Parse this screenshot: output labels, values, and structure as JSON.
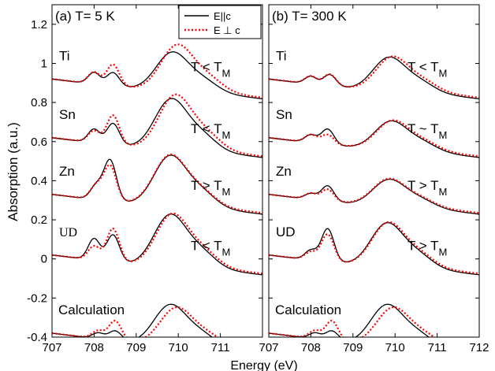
{
  "chart_data": {
    "type": "line",
    "ylabel": "Absorption (a.u.)",
    "xlabel": "Energy (eV)",
    "ylim": [
      -0.4,
      1.3
    ],
    "legend": {
      "position": "top-right of left panel",
      "entries": [
        {
          "label": "E||c",
          "style": "solid",
          "color": "#000000"
        },
        {
          "label": "E ⊥ c",
          "style": "dotted",
          "color": "#ff0000"
        }
      ]
    },
    "panels": [
      {
        "title": "(a) T= 5 K",
        "xlim": [
          707,
          712
        ],
        "xticks": [
          "707",
          "708",
          "709",
          "710",
          "711"
        ],
        "yticks": [
          "-0.4",
          "-0.2",
          "0",
          "0.2",
          "0.4",
          "0.6",
          "0.8",
          "1",
          "1.2"
        ],
        "spectra": [
          {
            "label": "Ti",
            "annotation": "T < T",
            "sub": "M",
            "offset": 0.92,
            "mainA": 0.22,
            "mainE": 709.85,
            "preA": 0.06,
            "preE": 708.0,
            "pre2A": 0.07,
            "pre2E": 708.45,
            "perpMainA": 0.26,
            "perpShift": 0.12,
            "perpPreA": 0.06,
            "perpPre2A": 0.11
          },
          {
            "label": "Sn",
            "annotation": "T < T",
            "sub": "M",
            "offset": 0.62,
            "mainA": 0.29,
            "mainE": 709.82,
            "preA": 0.07,
            "preE": 708.0,
            "pre2A": 0.11,
            "pre2E": 708.45,
            "perpMainA": 0.31,
            "perpShift": 0.1,
            "perpPreA": 0.06,
            "perpPre2A": 0.15
          },
          {
            "label": "Zn",
            "annotation": "T > T",
            "sub": "M",
            "offset": 0.33,
            "mainA": 0.29,
            "mainE": 709.8,
            "preA": 0.07,
            "preE": 708.05,
            "pre2A": 0.21,
            "pre2E": 708.38,
            "perpMainA": 0.29,
            "perpShift": 0.0,
            "perpPreA": 0.07,
            "perpPre2A": 0.18
          },
          {
            "label": "UD",
            "annotation": "T < T",
            "sub": "M",
            "offset": 0.02,
            "mainA": 0.3,
            "mainE": 709.8,
            "preA": 0.11,
            "preE": 708.0,
            "pre2A": 0.14,
            "pre2E": 708.45,
            "perpMainA": 0.3,
            "perpShift": 0.05,
            "perpPreA": 0.07,
            "perpPre2A": 0.17
          },
          {
            "label": "Calculation",
            "annotation": "",
            "sub": "",
            "offset": -0.38,
            "mainA": 0.23,
            "mainE": 709.8,
            "preA": 0.03,
            "preE": 708.1,
            "pre2A": 0.05,
            "pre2E": 708.5,
            "perpMainA": 0.21,
            "perpShift": 0.15,
            "perpPreA": 0.04,
            "perpPre2A": 0.1
          }
        ]
      },
      {
        "title": "(b) T= 300 K",
        "xlim": [
          707,
          712
        ],
        "xticks": [
          "707",
          "708",
          "709",
          "710",
          "711",
          "712"
        ],
        "yticks": [],
        "spectra": [
          {
            "label": "Ti",
            "annotation": "T < T",
            "sub": "M",
            "offset": 0.92,
            "mainA": 0.19,
            "mainE": 709.85,
            "preA": 0.04,
            "preE": 708.0,
            "pre2A": 0.06,
            "pre2E": 708.45,
            "perpMainA": 0.19,
            "perpShift": 0.08,
            "perpPreA": 0.04,
            "perpPre2A": 0.06
          },
          {
            "label": "Sn",
            "annotation": "T ~ T",
            "sub": "M",
            "offset": 0.62,
            "mainA": 0.16,
            "mainE": 709.9,
            "preA": 0.04,
            "preE": 708.0,
            "pre2A": 0.08,
            "pre2E": 708.4,
            "perpMainA": 0.16,
            "perpShift": 0.04,
            "perpPreA": 0.04,
            "perpPre2A": 0.05
          },
          {
            "label": "Zn",
            "annotation": "T > T",
            "sub": "M",
            "offset": 0.33,
            "mainA": 0.15,
            "mainE": 709.85,
            "preA": 0.03,
            "preE": 708.0,
            "pre2A": 0.08,
            "pre2E": 708.4,
            "perpMainA": 0.15,
            "perpShift": 0.0,
            "perpPreA": 0.03,
            "perpPre2A": 0.06
          },
          {
            "label": "UD",
            "annotation": "T > T",
            "sub": "M",
            "offset": 0.02,
            "mainA": 0.25,
            "mainE": 709.8,
            "preA": 0.05,
            "preE": 708.0,
            "pre2A": 0.17,
            "pre2E": 708.4,
            "perpMainA": 0.25,
            "perpShift": 0.03,
            "perpPreA": 0.04,
            "perpPre2A": 0.14
          },
          {
            "label": "Calculation",
            "annotation": "",
            "sub": "",
            "offset": -0.38,
            "mainA": 0.23,
            "mainE": 709.8,
            "preA": 0.03,
            "preE": 708.1,
            "pre2A": 0.05,
            "pre2E": 708.5,
            "perpMainA": 0.21,
            "perpShift": 0.15,
            "perpPreA": 0.04,
            "perpPre2A": 0.1
          }
        ]
      }
    ]
  }
}
